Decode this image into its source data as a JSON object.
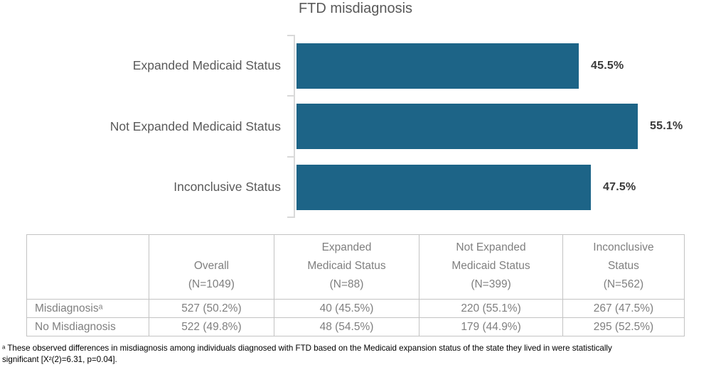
{
  "chart_data": {
    "type": "bar",
    "orientation": "horizontal",
    "title": "FTD misdiagnosis",
    "categories": [
      "Expanded Medicaid Status",
      "Not Expanded Medicaid Status",
      "Inconclusive Status"
    ],
    "values": [
      45.5,
      55.1,
      47.5
    ],
    "value_labels": [
      "45.5%",
      "55.1%",
      "47.5%"
    ],
    "xlim": [
      0,
      60
    ],
    "bar_color": "#1d6487",
    "axis_color": "#d9d9d9",
    "grid": false,
    "legend": false
  },
  "table": {
    "columns": [
      "",
      "Overall\n(N=1049)",
      "Expanded\nMedicaid Status\n(N=88)",
      "Not Expanded\nMedicaid Status\n(N=399)",
      "Inconclusive\nStatus\n(N=562)"
    ],
    "rows": [
      {
        "label": "Misdiagnosisᵃ",
        "cells": [
          "527 (50.2%)",
          "40 (45.5%)",
          "220 (55.1%)",
          "267 (47.5%)"
        ]
      },
      {
        "label": "No Misdiagnosis",
        "cells": [
          "522 (49.8%)",
          "48 (54.5%)",
          "179 (44.9%)",
          "295 (52.5%)"
        ]
      }
    ]
  },
  "footnote": "ᵃ These observed differences in misdiagnosis among individuals diagnosed with FTD based on the Medicaid expansion status of the state they lived in were statistically\nsignificant [X²(2)=6.31, p=0.04]."
}
